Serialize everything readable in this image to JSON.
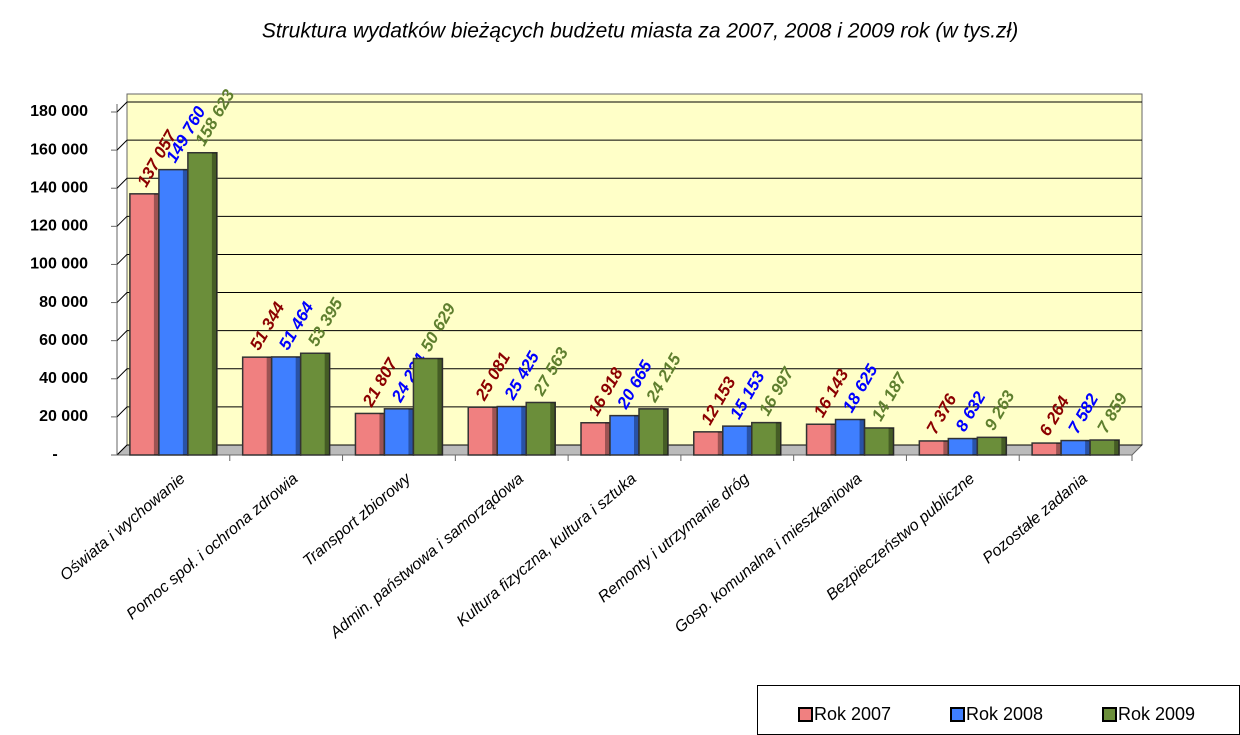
{
  "chart_data": {
    "type": "bar",
    "title": "Struktura wydatków bieżących budżetu miasta za 2007, 2008 i 2009 rok (w tys.zł)",
    "categories": [
      "Oświata i wychowanie",
      "Pomoc społ. i ochrona zdrowia",
      "Transport zbiorowy",
      "Admin. państwowa i samorządowa",
      "Kultura fizyczna, kultura i sztuka",
      "Remonty i utrzymanie dróg",
      "Gosp. komunalna i mieszkaniowa",
      "Bezpieczeństwo publiczne",
      "Pozostałe zadania"
    ],
    "series": [
      {
        "name": "Rok 2007",
        "color": "#f08080",
        "label_color": "#8b0000",
        "values": [
          137057,
          51344,
          21807,
          25081,
          16918,
          12153,
          16143,
          7376,
          6264
        ],
        "value_labels": [
          "137 057",
          "51 344",
          "21 807",
          "25 081",
          "16 918",
          "12 153",
          "16 143",
          "7 376",
          "6 264"
        ]
      },
      {
        "name": "Rok 2008",
        "color": "#3f7fff",
        "label_color": "#0000ff",
        "values": [
          149760,
          51464,
          24234,
          25425,
          20665,
          15153,
          18625,
          8632,
          7582
        ],
        "value_labels": [
          "149 760",
          "51 464",
          "24 234",
          "25 425",
          "20 665",
          "15 153",
          "18 625",
          "8 632",
          "7 582"
        ]
      },
      {
        "name": "Rok 2009",
        "color": "#6b8e3a",
        "label_color": "#5f7f2f",
        "values": [
          158623,
          53395,
          50629,
          27563,
          24215,
          16997,
          14187,
          9263,
          7859
        ],
        "value_labels": [
          "158 623",
          "53 395",
          "50 629",
          "27 563",
          "24 215",
          "16 997",
          "14 187",
          "9 263",
          "7 859"
        ]
      }
    ],
    "ylim": [
      0,
      180000
    ],
    "yticks": [
      {
        "value": 0,
        "label": "-"
      },
      {
        "value": 20000,
        "label": "20 000"
      },
      {
        "value": 40000,
        "label": "40 000"
      },
      {
        "value": 60000,
        "label": "60 000"
      },
      {
        "value": 80000,
        "label": "80 000"
      },
      {
        "value": 100000,
        "label": "100 000"
      },
      {
        "value": 120000,
        "label": "120 000"
      },
      {
        "value": 140000,
        "label": "140 000"
      },
      {
        "value": 160000,
        "label": "160 000"
      },
      {
        "value": 180000,
        "label": "180 000"
      }
    ],
    "grid": true,
    "legend": "bottom-right"
  }
}
